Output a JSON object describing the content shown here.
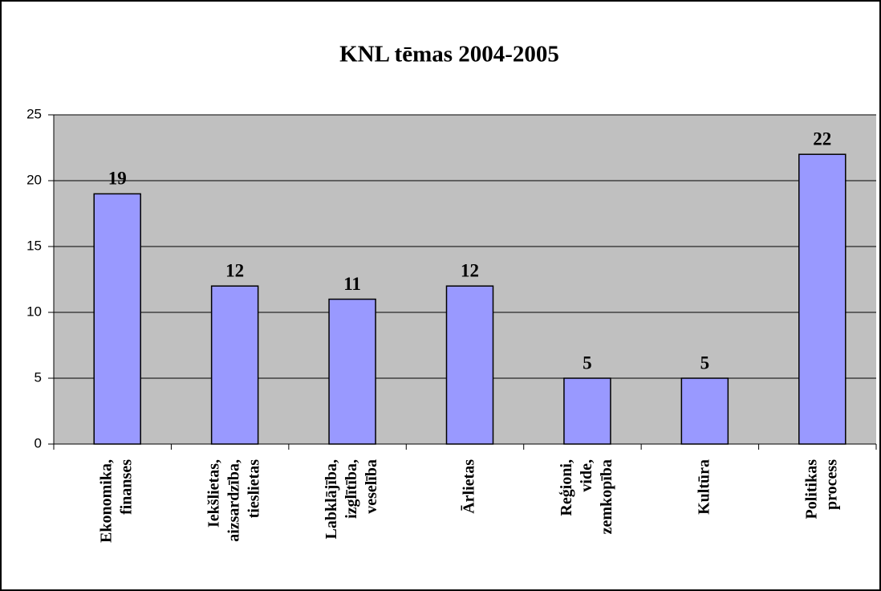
{
  "chart_data": {
    "type": "bar",
    "title": "KNL tēmas 2004-2005",
    "categories": [
      "Ekonomika,\nfinanses",
      "Iekšlietas,\naizsardzība,\ntieslietas",
      "Labklājība,\nizglītība,\nveselība",
      "Ārlietas",
      "Reģioni,\nvide,\nzemkopība",
      "Kultūra",
      "Politikas\nprocess"
    ],
    "values": [
      19,
      12,
      11,
      12,
      5,
      5,
      22
    ],
    "color": "#9999ff",
    "background": "#c0c0c0",
    "ylim": [
      0,
      25
    ],
    "yticks": [
      0,
      5,
      10,
      15,
      20,
      25
    ],
    "grid": true
  }
}
